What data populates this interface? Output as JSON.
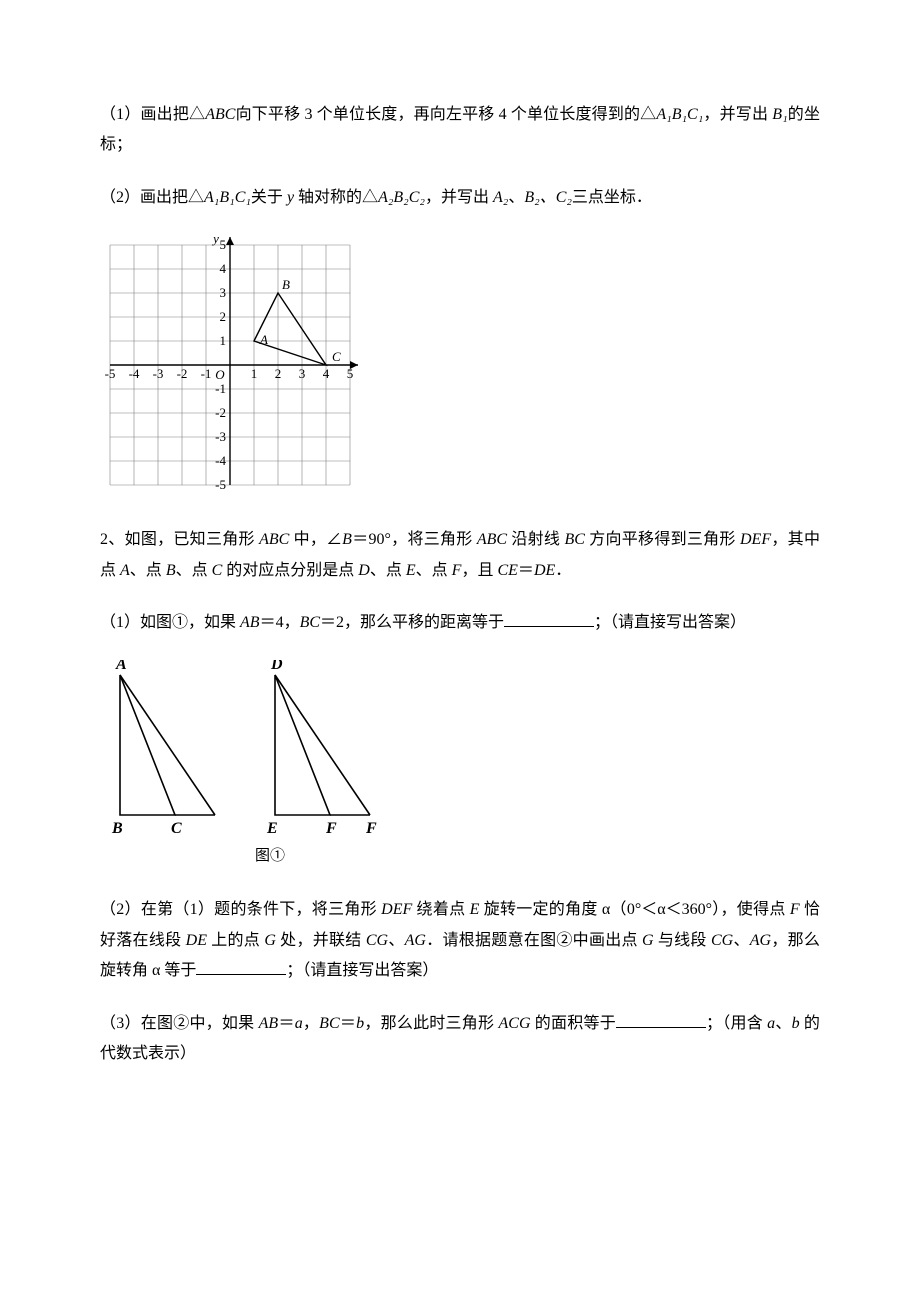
{
  "p1": {
    "q1_pre": "（1）画出把△",
    "abc": "ABC",
    "q1_mid1": "向下平移 3 个单位长度，再向左平移 4 个单位长度得到的△",
    "a1b1c1": "A₁B₁C₁",
    "q1_mid2": "，并写出 ",
    "b1": "B₁",
    "q1_end": "的坐标；"
  },
  "p2": {
    "q2_pre": "（2）画出把△",
    "a1b1c1": "A₁B₁C₁",
    "q2_mid1": "关于 ",
    "y": "y",
    "q2_mid2": " 轴对称的△",
    "a2b2c2": "A₂B₂C₂",
    "q2_mid3": "，并写出 ",
    "a2": "A₂",
    "sep1": "、",
    "b2": "B₂、",
    "c2": "C₂",
    "q2_end": "三点坐标．"
  },
  "grid": {
    "range": 5,
    "triangle": {
      "A": [
        1,
        1
      ],
      "B": [
        2,
        3
      ],
      "C": [
        4,
        0
      ]
    },
    "labels": {
      "A": "A",
      "B": "B",
      "C": "C",
      "O": "O",
      "x": "x",
      "y": "y"
    },
    "axis_color": "#000000",
    "grid_color": "#808080",
    "font_italic": true
  },
  "q2intro": {
    "pre": "2、如图，已知三角形 ",
    "abc": "ABC",
    "t1": " 中，∠",
    "B": "B",
    "eq90": "＝90°，将三角形 ",
    "abc2": "ABC",
    "t2": " 沿射线 ",
    "bc": "BC",
    "t3": " 方向平移得到三角形 ",
    "def": "DEF",
    "t4": "，其中点 ",
    "A": "A",
    "t5": "、点 ",
    "B2": "B",
    "t6": "、点 ",
    "C": "C",
    "t7": " 的对应点分别是点 ",
    "D": "D",
    "t8": "、点 ",
    "E": "E",
    "t9": "、点 ",
    "F": "F",
    "t10": "，且 ",
    "ce": "CE",
    "eq": "＝",
    "de": "DE",
    "period": "．"
  },
  "q2_1": {
    "pre": "（1）如图①，如果 ",
    "ab": "AB",
    "eq4": "＝4，",
    "bc": "BC",
    "eq2": "＝2，那么平移的距离等于",
    "tail": "；（请直接写出答案）"
  },
  "fig2": {
    "labels": {
      "A": "A",
      "B": "B",
      "C": "C",
      "D": "D",
      "E": "E",
      "F": "F"
    },
    "caption": "图①",
    "line_color": "#000000",
    "line_width": 1.6
  },
  "q2_2": {
    "pre": "（2）在第（1）题的条件下，将三角形 ",
    "def": "DEF",
    "t1": " 绕着点 ",
    "E": "E",
    "t2": " 旋转一定的角度 α（0°＜α＜360°），使得点 ",
    "F": "F",
    "t3": " 恰好落在线段 ",
    "de": "DE",
    "t4": " 上的点 ",
    "G": "G",
    "t5": " 处，并联结 ",
    "cg": "CG",
    "t6": "、",
    "ag": "AG",
    "t7": "．请根据题意在图②中画出点 ",
    "G2": "G",
    "t8": " 与线段 ",
    "cg2": "CG",
    "t9": "、",
    "ag2": "AG",
    "t10": "，那么旋转角 α 等于",
    "tail": "；（请直接写出答案）"
  },
  "q2_3": {
    "pre": "（3）在图②中，如果 ",
    "ab": "AB",
    "eqa": "＝",
    "a": "a",
    "comma": "，",
    "bc": "BC",
    "eqb": "＝",
    "b": "b",
    "t1": "，那么此时三角形 ",
    "acg": "ACG",
    "t2": " 的面积等于",
    "tail": "；（用含 ",
    "a2": "a",
    "sep": "、",
    "b2": "b",
    "tail2": " 的代数式表示）"
  }
}
